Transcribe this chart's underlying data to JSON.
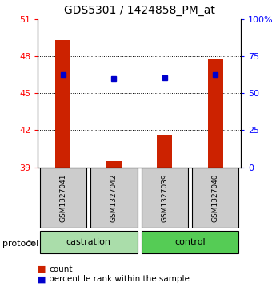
{
  "title": "GDS5301 / 1424858_PM_at",
  "samples": [
    "GSM1327041",
    "GSM1327042",
    "GSM1327039",
    "GSM1327040"
  ],
  "bar_values": [
    49.3,
    39.5,
    41.6,
    47.8
  ],
  "dot_values": [
    46.5,
    46.2,
    46.25,
    46.5
  ],
  "bar_color": "#cc2200",
  "dot_color": "#0000cc",
  "ylim_left": [
    39,
    51
  ],
  "yticks_left": [
    39,
    42,
    45,
    48,
    51
  ],
  "ylim_right": [
    0,
    100
  ],
  "yticks_right": [
    0,
    25,
    50,
    75,
    100
  ],
  "ytick_labels_right": [
    "0",
    "25",
    "50",
    "75",
    "100%"
  ],
  "hlines": [
    42,
    45,
    48
  ],
  "groups": [
    {
      "label": "castration",
      "indices": [
        0,
        1
      ],
      "color": "#aaddaa"
    },
    {
      "label": "control",
      "indices": [
        2,
        3
      ],
      "color": "#55cc55"
    }
  ],
  "protocol_label": "protocol",
  "legend": [
    {
      "label": "count",
      "color": "#cc2200"
    },
    {
      "label": "percentile rank within the sample",
      "color": "#0000cc"
    }
  ],
  "sample_box_color": "#cccccc",
  "bar_bottom": 39,
  "bar_width": 0.3
}
